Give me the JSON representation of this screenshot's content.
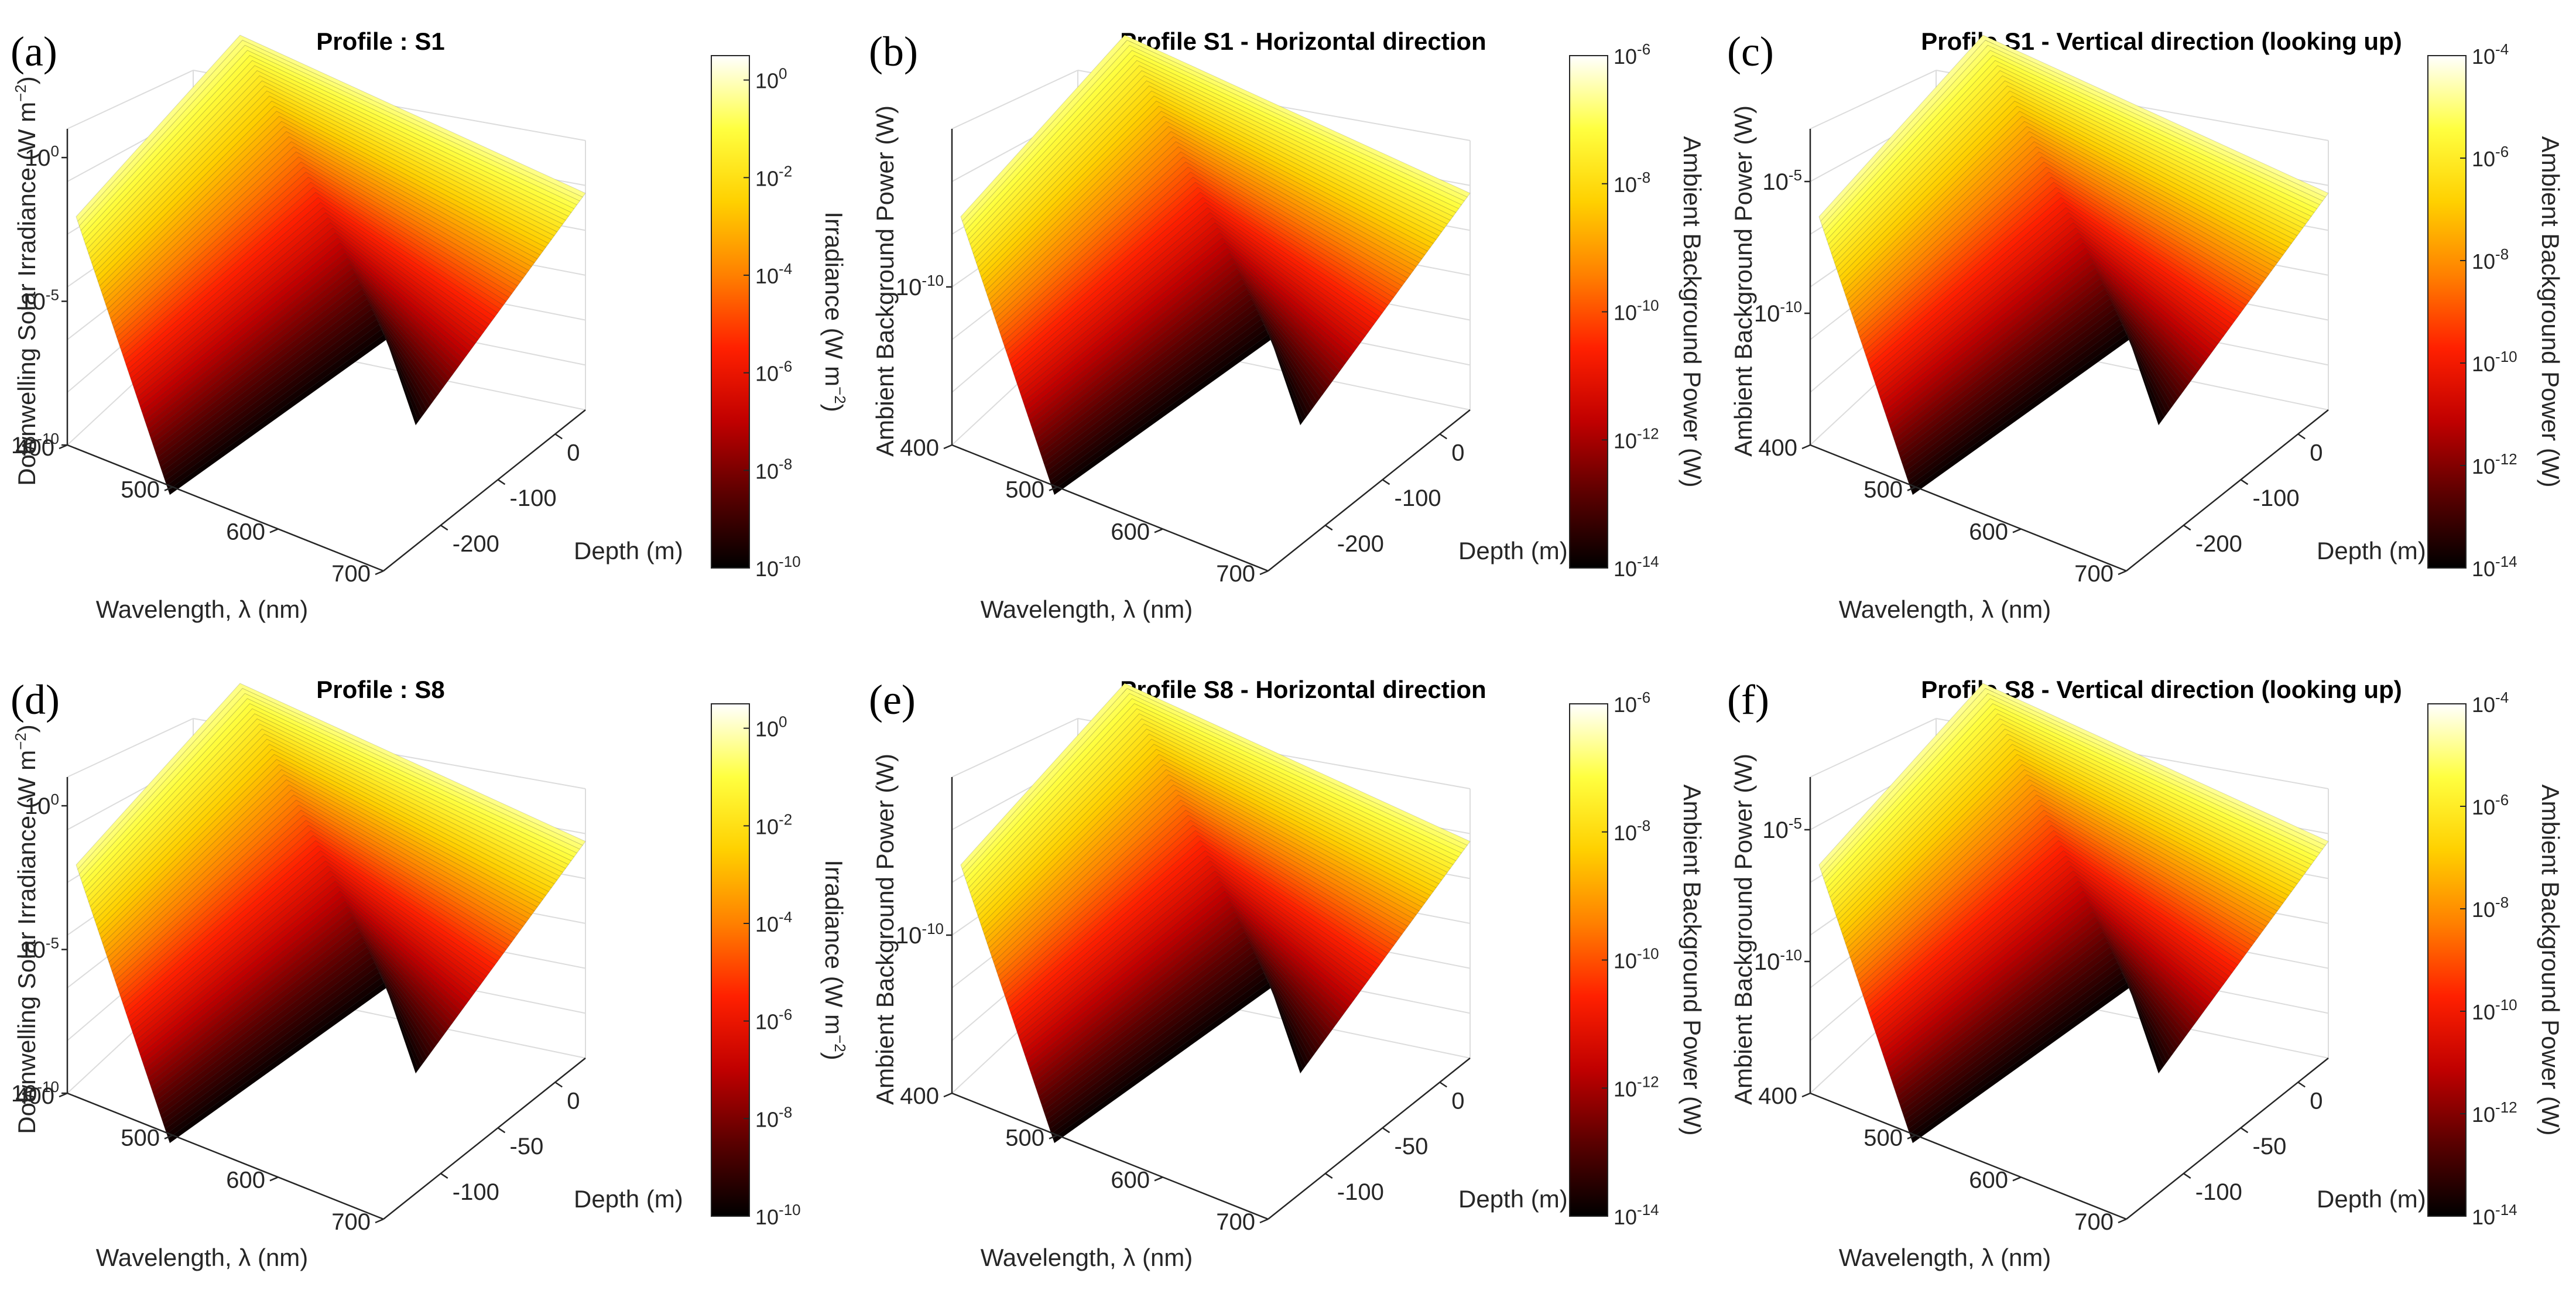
{
  "chart_data": [
    {
      "type": "surface3d",
      "panel_label": "(a)",
      "title": "Profile : S1",
      "xlabel": "Wavelength, λ (nm)",
      "ylabel": "Depth (m)",
      "zlabel": "Downwelling Solar Irradiance (W m−2)",
      "zlabel_base": "Downwelling Solar Irradiance (W m",
      "zlabel_exp": "−2",
      "zlabel_tail": ")",
      "x_ticks": [
        "400",
        "500",
        "600",
        "700"
      ],
      "y_ticks": [
        "0",
        "-100",
        "-200"
      ],
      "z_ticks": [
        {
          "base": "10",
          "exp": "0"
        },
        {
          "base": "10",
          "exp": "-5"
        },
        {
          "base": "10",
          "exp": "-10"
        }
      ],
      "xlim": [
        400,
        700
      ],
      "ylim": [
        -250,
        0
      ],
      "zlim_log10": [
        -10,
        1
      ],
      "surface_top_log10": 0,
      "colorbar_label": "Irradiance (W m−2)",
      "colorbar_label_base": "Irradiance (W m",
      "colorbar_label_exp": "−2",
      "colorbar_label_tail": ")",
      "colorbar_ticks": [
        {
          "base": "10",
          "exp": "0"
        },
        {
          "base": "10",
          "exp": "-2"
        },
        {
          "base": "10",
          "exp": "-4"
        },
        {
          "base": "10",
          "exp": "-6"
        },
        {
          "base": "10",
          "exp": "-8"
        },
        {
          "base": "10",
          "exp": "-10"
        }
      ],
      "colorbar_range_log10": [
        -10,
        0.5
      ],
      "colormap": [
        "#000000",
        "#5a0000",
        "#c00000",
        "#ff2000",
        "#ff8000",
        "#ffd000",
        "#ffff40",
        "#ffffff"
      ]
    },
    {
      "type": "surface3d",
      "panel_label": "(b)",
      "title": "Profile S1 - Horizontal direction",
      "xlabel": "Wavelength, λ (nm)",
      "ylabel": "Depth (m)",
      "zlabel": "Ambient Background Power (W)",
      "zlabel_base": "Ambient Background Power (W)",
      "zlabel_exp": "",
      "zlabel_tail": "",
      "x_ticks": [
        "400",
        "500",
        "600",
        "700"
      ],
      "y_ticks": [
        "0",
        "-100",
        "-200"
      ],
      "z_ticks": [
        {
          "base": "10",
          "exp": "-10"
        }
      ],
      "xlim": [
        400,
        700
      ],
      "ylim": [
        -250,
        0
      ],
      "zlim_log10": [
        -15,
        -5
      ],
      "surface_top_log10": -6,
      "colorbar_label": "Ambient Background Power (W)",
      "colorbar_label_base": "Ambient Background Power (W)",
      "colorbar_label_exp": "",
      "colorbar_label_tail": "",
      "colorbar_ticks": [
        {
          "base": "10",
          "exp": "-6"
        },
        {
          "base": "10",
          "exp": "-8"
        },
        {
          "base": "10",
          "exp": "-10"
        },
        {
          "base": "10",
          "exp": "-12"
        },
        {
          "base": "10",
          "exp": "-14"
        }
      ],
      "colorbar_range_log10": [
        -14,
        -6
      ],
      "colormap": [
        "#000000",
        "#5a0000",
        "#c00000",
        "#ff2000",
        "#ff8000",
        "#ffd000",
        "#ffff40",
        "#ffffff"
      ]
    },
    {
      "type": "surface3d",
      "panel_label": "(c)",
      "title": "Profile S1 - Vertical direction (looking up)",
      "xlabel": "Wavelength, λ (nm)",
      "ylabel": "Depth (m)",
      "zlabel": "Ambient Background Power (W)",
      "zlabel_base": "Ambient Background Power (W)",
      "zlabel_exp": "",
      "zlabel_tail": "",
      "x_ticks": [
        "400",
        "500",
        "600",
        "700"
      ],
      "y_ticks": [
        "0",
        "-100",
        "-200"
      ],
      "z_ticks": [
        {
          "base": "10",
          "exp": "-5"
        },
        {
          "base": "10",
          "exp": "-10"
        }
      ],
      "xlim": [
        400,
        700
      ],
      "ylim": [
        -250,
        0
      ],
      "zlim_log10": [
        -15,
        -3
      ],
      "surface_top_log10": -4,
      "colorbar_label": "Ambient Background Power (W)",
      "colorbar_label_base": "Ambient Background Power (W)",
      "colorbar_label_exp": "",
      "colorbar_label_tail": "",
      "colorbar_ticks": [
        {
          "base": "10",
          "exp": "-4"
        },
        {
          "base": "10",
          "exp": "-6"
        },
        {
          "base": "10",
          "exp": "-8"
        },
        {
          "base": "10",
          "exp": "-10"
        },
        {
          "base": "10",
          "exp": "-12"
        },
        {
          "base": "10",
          "exp": "-14"
        }
      ],
      "colorbar_range_log10": [
        -14,
        -4
      ],
      "colormap": [
        "#000000",
        "#5a0000",
        "#c00000",
        "#ff2000",
        "#ff8000",
        "#ffd000",
        "#ffff40",
        "#ffffff"
      ]
    },
    {
      "type": "surface3d",
      "panel_label": "(d)",
      "title": "Profile : S8",
      "xlabel": "Wavelength, λ (nm)",
      "ylabel": "Depth (m)",
      "zlabel": "Downwelling Solar Irradiance (W m−2)",
      "zlabel_base": "Downwelling Solar Irradiance (W m",
      "zlabel_exp": "−2",
      "zlabel_tail": ")",
      "x_ticks": [
        "400",
        "500",
        "600",
        "700"
      ],
      "y_ticks": [
        "0",
        "-50",
        "-100"
      ],
      "z_ticks": [
        {
          "base": "10",
          "exp": "0"
        },
        {
          "base": "10",
          "exp": "-5"
        },
        {
          "base": "10",
          "exp": "-10"
        }
      ],
      "xlim": [
        400,
        700
      ],
      "ylim": [
        -120,
        0
      ],
      "zlim_log10": [
        -10,
        1
      ],
      "surface_top_log10": 0,
      "colorbar_label": "Irradiance (W m−2)",
      "colorbar_label_base": "Irradiance (W m",
      "colorbar_label_exp": "−2",
      "colorbar_label_tail": ")",
      "colorbar_ticks": [
        {
          "base": "10",
          "exp": "0"
        },
        {
          "base": "10",
          "exp": "-2"
        },
        {
          "base": "10",
          "exp": "-4"
        },
        {
          "base": "10",
          "exp": "-6"
        },
        {
          "base": "10",
          "exp": "-8"
        },
        {
          "base": "10",
          "exp": "-10"
        }
      ],
      "colorbar_range_log10": [
        -10,
        0.5
      ],
      "colormap": [
        "#000000",
        "#5a0000",
        "#c00000",
        "#ff2000",
        "#ff8000",
        "#ffd000",
        "#ffff40",
        "#ffffff"
      ]
    },
    {
      "type": "surface3d",
      "panel_label": "(e)",
      "title": "Profile S8 - Horizontal direction",
      "xlabel": "Wavelength, λ (nm)",
      "ylabel": "Depth (m)",
      "zlabel": "Ambient Background Power (W)",
      "zlabel_base": "Ambient Background Power (W)",
      "zlabel_exp": "",
      "zlabel_tail": "",
      "x_ticks": [
        "400",
        "500",
        "600",
        "700"
      ],
      "y_ticks": [
        "0",
        "-50",
        "-100"
      ],
      "z_ticks": [
        {
          "base": "10",
          "exp": "-10"
        }
      ],
      "xlim": [
        400,
        700
      ],
      "ylim": [
        -120,
        0
      ],
      "zlim_log10": [
        -15,
        -5
      ],
      "surface_top_log10": -6,
      "colorbar_label": "Ambient Background Power (W)",
      "colorbar_label_base": "Ambient Background Power (W)",
      "colorbar_label_exp": "",
      "colorbar_label_tail": "",
      "colorbar_ticks": [
        {
          "base": "10",
          "exp": "-6"
        },
        {
          "base": "10",
          "exp": "-8"
        },
        {
          "base": "10",
          "exp": "-10"
        },
        {
          "base": "10",
          "exp": "-12"
        },
        {
          "base": "10",
          "exp": "-14"
        }
      ],
      "colorbar_range_log10": [
        -14,
        -6
      ],
      "colormap": [
        "#000000",
        "#5a0000",
        "#c00000",
        "#ff2000",
        "#ff8000",
        "#ffd000",
        "#ffff40",
        "#ffffff"
      ]
    },
    {
      "type": "surface3d",
      "panel_label": "(f)",
      "title": "Profile S8 - Vertical direction (looking up)",
      "xlabel": "Wavelength, λ (nm)",
      "ylabel": "Depth (m)",
      "zlabel": "Ambient Background Power (W)",
      "zlabel_base": "Ambient Background Power (W)",
      "zlabel_exp": "",
      "zlabel_tail": "",
      "x_ticks": [
        "400",
        "500",
        "600",
        "700"
      ],
      "y_ticks": [
        "0",
        "-50",
        "-100"
      ],
      "z_ticks": [
        {
          "base": "10",
          "exp": "-5"
        },
        {
          "base": "10",
          "exp": "-10"
        }
      ],
      "xlim": [
        400,
        700
      ],
      "ylim": [
        -120,
        0
      ],
      "zlim_log10": [
        -15,
        -3
      ],
      "surface_top_log10": -4,
      "colorbar_label": "Ambient Background Power (W)",
      "colorbar_label_base": "Ambient Background Power (W)",
      "colorbar_label_exp": "",
      "colorbar_label_tail": "",
      "colorbar_ticks": [
        {
          "base": "10",
          "exp": "-4"
        },
        {
          "base": "10",
          "exp": "-6"
        },
        {
          "base": "10",
          "exp": "-8"
        },
        {
          "base": "10",
          "exp": "-10"
        },
        {
          "base": "10",
          "exp": "-12"
        },
        {
          "base": "10",
          "exp": "-14"
        }
      ],
      "colorbar_range_log10": [
        -14,
        -4
      ],
      "colormap": [
        "#000000",
        "#5a0000",
        "#c00000",
        "#ff2000",
        "#ff8000",
        "#ffd000",
        "#ffff40",
        "#ffffff"
      ]
    }
  ]
}
